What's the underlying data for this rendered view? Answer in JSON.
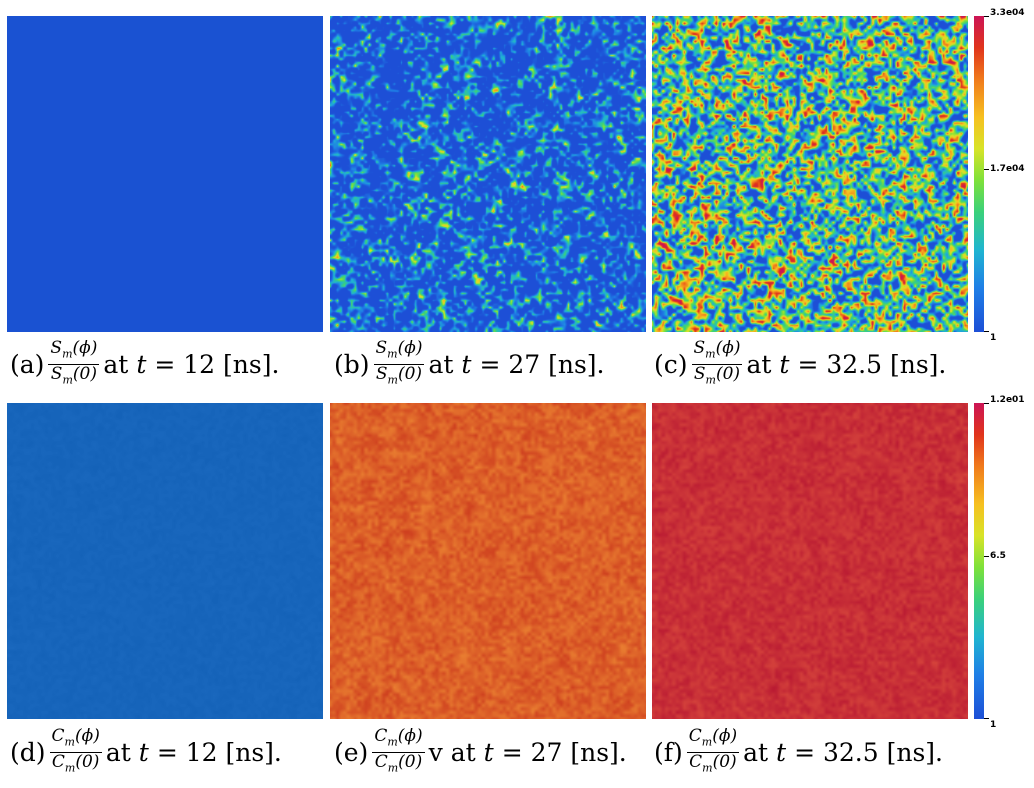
{
  "figure_rows": [
    {
      "panels": [
        {
          "id": "a",
          "label": "(a)",
          "num_var": "S",
          "num_arg": "(ϕ)",
          "den_var": "S",
          "den_arg": "(0)",
          "sub": "m",
          "mid": "at",
          "t_var": "t",
          "eq": "= 12 [ns].",
          "field": "uniform-blue"
        },
        {
          "id": "b",
          "label": "(b)",
          "num_var": "S",
          "num_arg": "(ϕ)",
          "den_var": "S",
          "den_arg": "(0)",
          "sub": "m",
          "mid": "at",
          "t_var": "t",
          "eq": "= 27 [ns].",
          "field": "sparse-hotspots"
        },
        {
          "id": "c",
          "label": "(c)",
          "num_var": "S",
          "num_arg": "(ϕ)",
          "den_var": "S",
          "den_arg": "(0)",
          "sub": "m",
          "mid": "at",
          "t_var": "t",
          "eq": "= 32.5 [ns].",
          "field": "dense-hotspots"
        }
      ],
      "colorbar": {
        "max": "3.3e04",
        "mid": "1.7e04",
        "min": "1"
      }
    },
    {
      "panels": [
        {
          "id": "d",
          "label": "(d)",
          "num_var": "C",
          "num_arg": "(ϕ)",
          "den_var": "C",
          "den_arg": "(0)",
          "sub": "m",
          "mid": "at",
          "t_var": "t",
          "eq": "= 12 [ns].",
          "field": "uniform-steel-blue"
        },
        {
          "id": "e",
          "label": "(e)",
          "num_var": "C",
          "num_arg": "(ϕ)",
          "den_var": "C",
          "den_arg": "(0)",
          "sub": "m",
          "mid": "v at",
          "t_var": "t",
          "eq": "= 27 [ns].",
          "field": "red-orange-noise"
        },
        {
          "id": "f",
          "label": "(f)",
          "num_var": "C",
          "num_arg": "(ϕ)",
          "den_var": "C",
          "den_arg": "(0)",
          "sub": "m",
          "mid": "at",
          "t_var": "t",
          "eq": "= 32.5 [ns].",
          "field": "crimson-noise"
        }
      ],
      "colorbar": {
        "max": "1.2e01",
        "mid": "6.5",
        "min": "1"
      }
    }
  ],
  "colors": {
    "uniform_blue": "#1a52d2",
    "steel_blue": "#1765bb",
    "red": "#d8301e",
    "crimson": "#c81837"
  }
}
